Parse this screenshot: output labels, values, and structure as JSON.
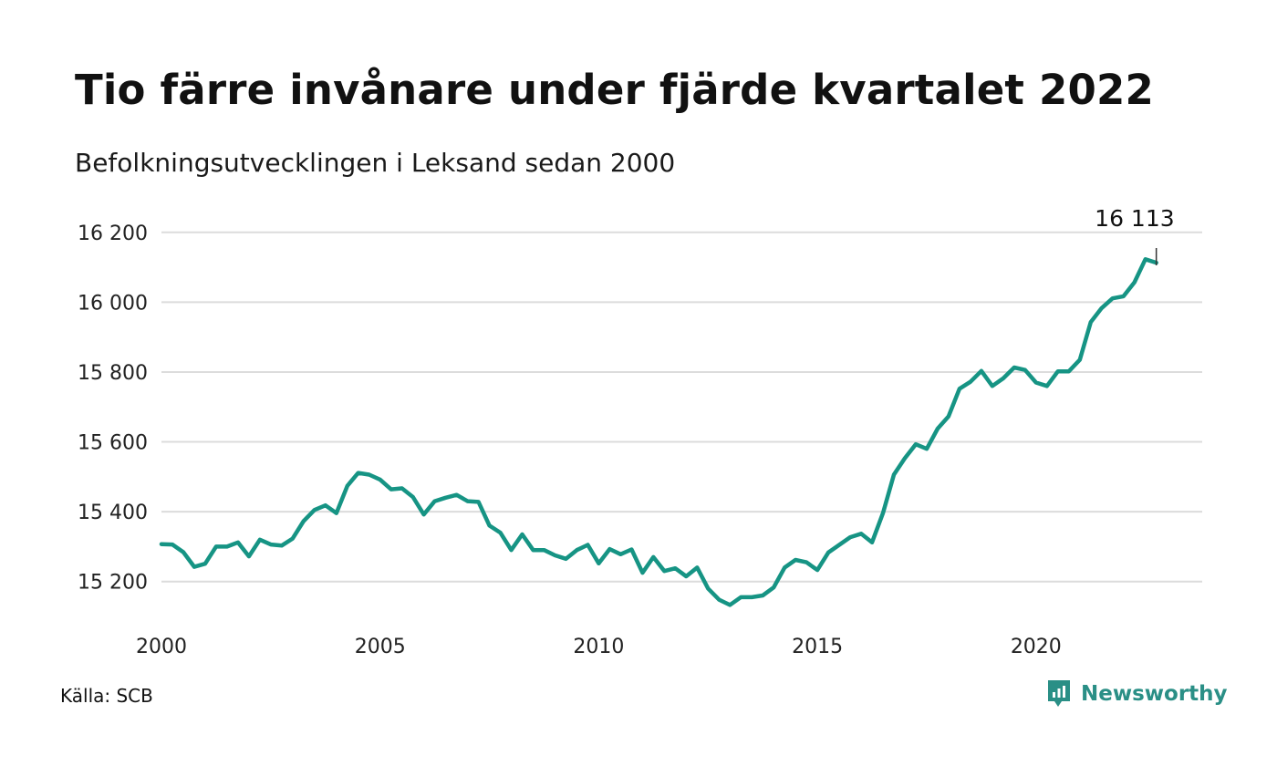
{
  "header": {
    "title": "Tio färre invånare under fjärde kvartalet 2022",
    "subtitle": "Befolkningsutvecklingen i Leksand sedan 2000"
  },
  "footer": {
    "source": "Källa: SCB",
    "brand_name": "Newsworthy",
    "brand_icon": "newsworthy-logo-icon"
  },
  "colors": {
    "line": "#169484",
    "grid": "#dcdcdc",
    "brand": "#2a8f86"
  },
  "chart_data": {
    "type": "line",
    "title": "Tio färre invånare under fjärde kvartalet 2022",
    "subtitle": "Befolkningsutvecklingen i Leksand sedan 2000",
    "xlabel": "",
    "ylabel": "",
    "grid": "horizontal",
    "xlim": [
      2000,
      2023.8
    ],
    "ylim": [
      15100,
      16270
    ],
    "x_ticks": [
      {
        "value": 2000,
        "label": "2000"
      },
      {
        "value": 2005,
        "label": "2005"
      },
      {
        "value": 2010,
        "label": "2010"
      },
      {
        "value": 2015,
        "label": "2015"
      },
      {
        "value": 2020,
        "label": "2020"
      }
    ],
    "y_ticks": [
      {
        "value": 15200,
        "label": "15 200"
      },
      {
        "value": 15400,
        "label": "15 400"
      },
      {
        "value": 15600,
        "label": "15 600"
      },
      {
        "value": 15800,
        "label": "15 800"
      },
      {
        "value": 16000,
        "label": "16 000"
      },
      {
        "value": 16200,
        "label": "16 200"
      }
    ],
    "annotation": {
      "label": "16 113",
      "value": 16113
    },
    "series": [
      {
        "values": [
          15307,
          15306,
          15284,
          15242,
          15251,
          15300,
          15300,
          15312,
          15272,
          15320,
          15306,
          15303,
          15323,
          15373,
          15405,
          15418,
          15396,
          15474,
          15511,
          15506,
          15492,
          15464,
          15467,
          15442,
          15392,
          15430,
          15440,
          15448,
          15430,
          15428,
          15360,
          15340,
          15290,
          15335,
          15290,
          15290,
          15275,
          15265,
          15290,
          15305,
          15252,
          15293,
          15278,
          15292,
          15225,
          15270,
          15230,
          15238,
          15215,
          15240,
          15180,
          15148,
          15133,
          15155,
          15155,
          15160,
          15183,
          15240,
          15262,
          15255,
          15233,
          15283,
          15305,
          15327,
          15337,
          15312,
          15396,
          15506,
          15553,
          15593,
          15580,
          15638,
          15673,
          15752,
          15772,
          15803,
          15760,
          15782,
          15813,
          15806,
          15770,
          15760,
          15802,
          15802,
          15835,
          15943,
          15983,
          16011,
          16017,
          16057,
          16123,
          16113
        ]
      }
    ]
  }
}
